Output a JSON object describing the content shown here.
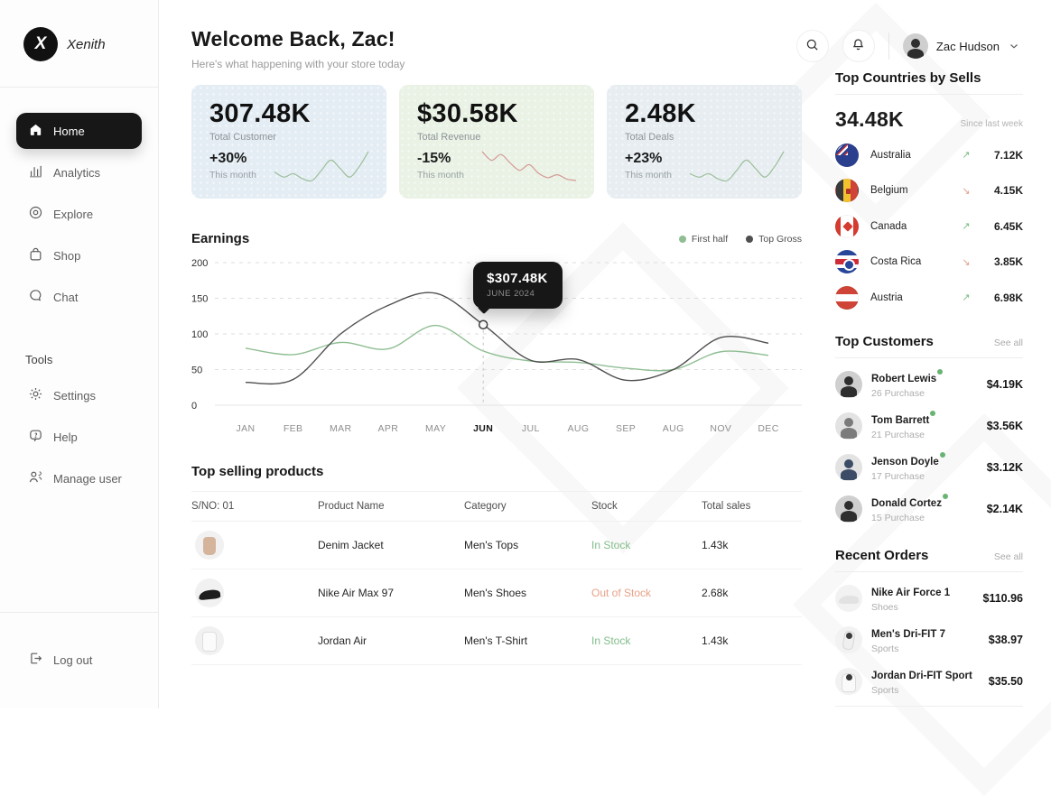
{
  "sidebar": {
    "brand": "Xenith",
    "items": [
      {
        "label": "Home",
        "active": true
      },
      {
        "label": "Analytics",
        "active": false
      },
      {
        "label": "Explore",
        "active": false
      },
      {
        "label": "Shop",
        "active": false
      },
      {
        "label": "Chat",
        "active": false
      }
    ],
    "tools_label": "Tools",
    "tools": [
      {
        "label": "Settings"
      },
      {
        "label": "Help"
      },
      {
        "label": "Manage user"
      }
    ],
    "logout_label": "Log out"
  },
  "header": {
    "title": "Welcome Back, Zac!",
    "subtitle": "Here's what happening with your store today",
    "user_name": "Zac Hudson"
  },
  "icons": {
    "trend_up": "↗",
    "trend_down": "↘"
  },
  "stats": [
    {
      "value": "307.48K",
      "label": "Total Customer",
      "change": "+30%",
      "period": "This month",
      "bg": "#e4edf4",
      "spark_color": "#9cbf9b",
      "spark": [
        14,
        11,
        13,
        10,
        9,
        15,
        21,
        16,
        11,
        17,
        26
      ]
    },
    {
      "value": "$30.58K",
      "label": "Total Revenue",
      "change": "-15%",
      "period": "This month",
      "bg": "#e9f2e5",
      "spark_color": "#d49a94",
      "spark": [
        24,
        18,
        22,
        16,
        11,
        15,
        9,
        6,
        8,
        5,
        4
      ]
    },
    {
      "value": "2.48K",
      "label": "Total Deals",
      "change": "+23%",
      "period": "This month",
      "bg": "#e7edf1",
      "spark_color": "#9cbf9b",
      "spark": [
        12,
        10,
        12,
        9,
        8,
        14,
        20,
        15,
        10,
        16,
        25
      ]
    }
  ],
  "chart_data": {
    "type": "line",
    "title": "Earnings",
    "x": [
      "JAN",
      "FEB",
      "MAR",
      "APR",
      "MAY",
      "JUN",
      "JUL",
      "AUG",
      "SEP",
      "AUG",
      "NOV",
      "DEC"
    ],
    "ylim": [
      0,
      200
    ],
    "yticks": [
      0,
      50,
      100,
      150,
      200
    ],
    "grid": "dashed-horizontal",
    "legend_position": "top-right",
    "series": [
      {
        "name": "First half",
        "color": "#8fbe93",
        "values": [
          80,
          71,
          88,
          79,
          112,
          76,
          62,
          60,
          52,
          50,
          75,
          70
        ]
      },
      {
        "name": "Top Gross",
        "color": "#4f4f4f",
        "values": [
          32,
          36,
          100,
          140,
          157,
          113,
          63,
          64,
          35,
          50,
          95,
          87
        ]
      }
    ],
    "tooltip": {
      "value": "$307.48K",
      "label": "JUNE 2024",
      "month_index": 5,
      "series_index": 1
    }
  },
  "products": {
    "title": "Top selling products",
    "columns": [
      "S/NO: 01",
      "Product Name",
      "Category",
      "Stock",
      "Total sales"
    ],
    "rows": [
      {
        "name": "Denim Jacket",
        "category": "Men's Tops",
        "stock": "In Stock",
        "stock_status": "in",
        "sales": "1.43k",
        "thumb": "tan-shirt"
      },
      {
        "name": "Nike Air Max 97",
        "category": "Men's Shoes",
        "stock": "Out of Stock",
        "stock_status": "out",
        "sales": "2.68k",
        "thumb": "black-shoe"
      },
      {
        "name": "Jordan Air",
        "category": "Men's T-Shirt",
        "stock": "In Stock",
        "stock_status": "in",
        "sales": "1.43k",
        "thumb": "white-shirt"
      }
    ]
  },
  "countries": {
    "title": "Top Countries by Sells",
    "total": "34.48K",
    "note": "Since last week",
    "items": [
      {
        "name": "Australia",
        "flag": "australia",
        "trend": "up",
        "value": "7.12K"
      },
      {
        "name": "Belgium",
        "flag": "belgium",
        "trend": "down",
        "value": "4.15K"
      },
      {
        "name": "Canada",
        "flag": "canada",
        "trend": "up",
        "value": "6.45K"
      },
      {
        "name": "Costa Rica",
        "flag": "costa-rica",
        "trend": "down",
        "value": "3.85K"
      },
      {
        "name": "Austria",
        "flag": "austria",
        "trend": "up",
        "value": "6.98K"
      }
    ]
  },
  "customers": {
    "title": "Top Customers",
    "see_all": "See all",
    "items": [
      {
        "name": "Robert Lewis",
        "purchases": "26 Purchase",
        "value": "$4.19K"
      },
      {
        "name": "Tom Barrett",
        "purchases": "21 Purchase",
        "value": "$3.56K"
      },
      {
        "name": "Jenson Doyle",
        "purchases": "17 Purchase",
        "value": "$3.12K"
      },
      {
        "name": "Donald Cortez",
        "purchases": "15 Purchase",
        "value": "$2.14K"
      }
    ]
  },
  "orders": {
    "title": "Recent Orders",
    "see_all": "See all",
    "items": [
      {
        "name": "Nike Air Force 1",
        "category": "Shoes",
        "price": "$110.96",
        "thumb": "white-sneaker"
      },
      {
        "name": "Men's Dri-FIT 7",
        "category": "Sports",
        "price": "$38.97",
        "thumb": "runner"
      },
      {
        "name": "Jordan Dri-FIT Sport",
        "category": "Sports",
        "price": "$35.50",
        "thumb": "hoodie"
      }
    ]
  }
}
